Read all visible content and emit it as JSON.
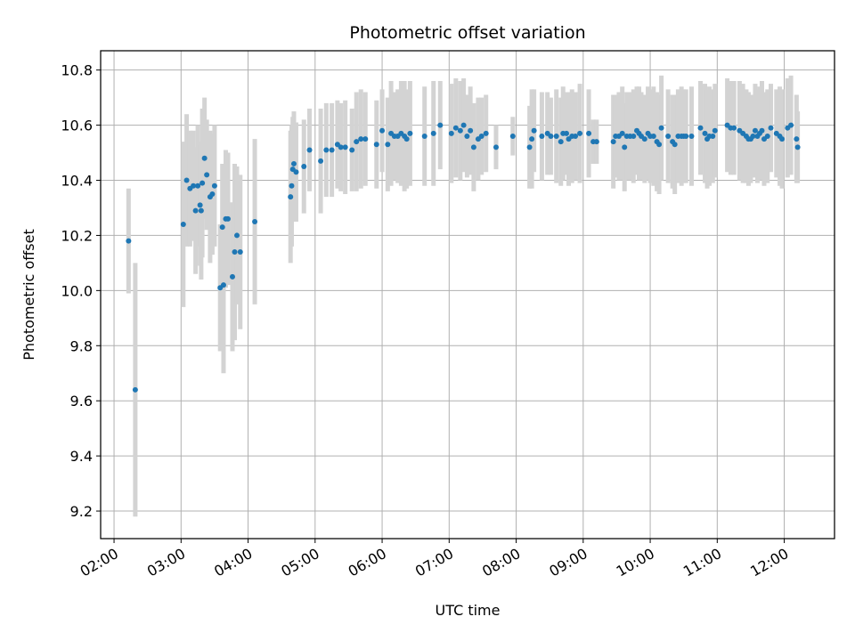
{
  "chart_data": {
    "type": "scatter",
    "title": "Photometric offset variation",
    "xlabel": "UTC time",
    "ylabel": "Photometric offset",
    "x_is_time": true,
    "xlim": [
      "01:48",
      "12:45"
    ],
    "ylim": [
      9.1,
      10.87
    ],
    "x_ticks": [
      "02:00",
      "03:00",
      "04:00",
      "05:00",
      "06:00",
      "07:00",
      "08:00",
      "09:00",
      "10:00",
      "11:00",
      "12:00"
    ],
    "y_ticks": [
      9.2,
      9.4,
      9.6,
      9.8,
      10.0,
      10.2,
      10.4,
      10.6,
      10.8
    ],
    "y_tick_labels": [
      "9.2",
      "9.4",
      "9.6",
      "9.8",
      "10.0",
      "10.2",
      "10.4",
      "10.6",
      "10.8"
    ],
    "grid": true,
    "colors": {
      "points": "#1f77b4",
      "errorbars": "#d3d3d3",
      "grid": "#b0b0b0",
      "axes": "#000000"
    },
    "series": [
      {
        "points": [
          [
            "02:13",
            10.18,
            0.19
          ],
          [
            "02:19",
            9.64,
            0.46
          ],
          [
            "03:02",
            10.24,
            0.3
          ],
          [
            "03:05",
            10.4,
            0.24
          ],
          [
            "03:08",
            10.37,
            0.21
          ],
          [
            "03:11",
            10.38,
            0.2
          ],
          [
            "03:13",
            10.29,
            0.23
          ],
          [
            "03:15",
            10.38,
            0.22
          ],
          [
            "03:17",
            10.31,
            0.22
          ],
          [
            "03:18",
            10.29,
            0.25
          ],
          [
            "03:19",
            10.39,
            0.27
          ],
          [
            "03:21",
            10.48,
            0.22
          ],
          [
            "03:23",
            10.42,
            0.2
          ],
          [
            "03:26",
            10.34,
            0.24
          ],
          [
            "03:28",
            10.35,
            0.22
          ],
          [
            "03:30",
            10.38,
            0.22
          ],
          [
            "03:35",
            10.01,
            0.23
          ],
          [
            "03:37",
            10.23,
            0.23
          ],
          [
            "03:38",
            10.02,
            0.32
          ],
          [
            "03:40",
            10.26,
            0.25
          ],
          [
            "03:42",
            10.26,
            0.24
          ],
          [
            "03:46",
            10.05,
            0.27
          ],
          [
            "03:48",
            10.14,
            0.32
          ],
          [
            "03:50",
            10.2,
            0.25
          ],
          [
            "03:53",
            10.14,
            0.28
          ],
          [
            "04:06",
            10.25,
            0.3
          ],
          [
            "04:38",
            10.34,
            0.24
          ],
          [
            "04:39",
            10.38,
            0.22
          ],
          [
            "04:40",
            10.44,
            0.19
          ],
          [
            "04:41",
            10.46,
            0.19
          ],
          [
            "04:43",
            10.43,
            0.18
          ],
          [
            "04:50",
            10.45,
            0.17
          ],
          [
            "04:55",
            10.51,
            0.15
          ],
          [
            "05:05",
            10.47,
            0.19
          ],
          [
            "05:10",
            10.51,
            0.17
          ],
          [
            "05:15",
            10.51,
            0.17
          ],
          [
            "05:20",
            10.53,
            0.16
          ],
          [
            "05:23",
            10.52,
            0.16
          ],
          [
            "05:27",
            10.52,
            0.17
          ],
          [
            "05:33",
            10.51,
            0.15
          ],
          [
            "05:37",
            10.54,
            0.18
          ],
          [
            "05:41",
            10.55,
            0.18
          ],
          [
            "05:45",
            10.55,
            0.17
          ],
          [
            "05:55",
            10.53,
            0.16
          ],
          [
            "06:00",
            10.58,
            0.15
          ],
          [
            "06:05",
            10.53,
            0.17
          ],
          [
            "06:08",
            10.57,
            0.19
          ],
          [
            "06:11",
            10.56,
            0.16
          ],
          [
            "06:14",
            10.56,
            0.17
          ],
          [
            "06:17",
            10.57,
            0.19
          ],
          [
            "06:20",
            10.56,
            0.2
          ],
          [
            "06:22",
            10.55,
            0.18
          ],
          [
            "06:25",
            10.57,
            0.19
          ],
          [
            "06:38",
            10.56,
            0.18
          ],
          [
            "06:46",
            10.57,
            0.19
          ],
          [
            "06:52",
            10.6,
            0.16
          ],
          [
            "07:02",
            10.57,
            0.18
          ],
          [
            "07:06",
            10.59,
            0.18
          ],
          [
            "07:10",
            10.58,
            0.18
          ],
          [
            "07:13",
            10.6,
            0.17
          ],
          [
            "07:16",
            10.56,
            0.15
          ],
          [
            "07:19",
            10.58,
            0.16
          ],
          [
            "07:22",
            10.52,
            0.16
          ],
          [
            "07:26",
            10.55,
            0.15
          ],
          [
            "07:29",
            10.56,
            0.14
          ],
          [
            "07:33",
            10.57,
            0.14
          ],
          [
            "07:42",
            10.52,
            0.08
          ],
          [
            "07:57",
            10.56,
            0.07
          ],
          [
            "08:12",
            10.52,
            0.15
          ],
          [
            "08:14",
            10.55,
            0.18
          ],
          [
            "08:16",
            10.58,
            0.15
          ],
          [
            "08:23",
            10.56,
            0.16
          ],
          [
            "08:28",
            10.57,
            0.15
          ],
          [
            "08:31",
            10.56,
            0.14
          ],
          [
            "08:36",
            10.56,
            0.17
          ],
          [
            "08:40",
            10.54,
            0.16
          ],
          [
            "08:42",
            10.57,
            0.17
          ],
          [
            "08:45",
            10.57,
            0.15
          ],
          [
            "08:47",
            10.55,
            0.17
          ],
          [
            "08:50",
            10.56,
            0.17
          ],
          [
            "08:53",
            10.56,
            0.16
          ],
          [
            "08:57",
            10.57,
            0.18
          ],
          [
            "09:05",
            10.57,
            0.16
          ],
          [
            "09:09",
            10.54,
            0.08
          ],
          [
            "09:12",
            10.54,
            0.08
          ],
          [
            "09:27",
            10.54,
            0.17
          ],
          [
            "09:29",
            10.56,
            0.15
          ],
          [
            "09:32",
            10.56,
            0.16
          ],
          [
            "09:35",
            10.57,
            0.17
          ],
          [
            "09:37",
            10.52,
            0.16
          ],
          [
            "09:39",
            10.56,
            0.16
          ],
          [
            "09:42",
            10.56,
            0.16
          ],
          [
            "09:45",
            10.56,
            0.17
          ],
          [
            "09:48",
            10.58,
            0.16
          ],
          [
            "09:50",
            10.57,
            0.17
          ],
          [
            "09:52",
            10.56,
            0.16
          ],
          [
            "09:55",
            10.55,
            0.16
          ],
          [
            "09:58",
            10.57,
            0.17
          ],
          [
            "10:00",
            10.56,
            0.17
          ],
          [
            "10:03",
            10.56,
            0.18
          ],
          [
            "10:06",
            10.54,
            0.18
          ],
          [
            "10:08",
            10.53,
            0.18
          ],
          [
            "10:10",
            10.59,
            0.19
          ],
          [
            "10:16",
            10.56,
            0.17
          ],
          [
            "10:20",
            10.54,
            0.17
          ],
          [
            "10:22",
            10.53,
            0.18
          ],
          [
            "10:25",
            10.56,
            0.17
          ],
          [
            "10:28",
            10.56,
            0.18
          ],
          [
            "10:30",
            10.56,
            0.17
          ],
          [
            "10:32",
            10.56,
            0.17
          ],
          [
            "10:37",
            10.56,
            0.18
          ],
          [
            "10:45",
            10.59,
            0.17
          ],
          [
            "10:49",
            10.57,
            0.18
          ],
          [
            "10:51",
            10.55,
            0.18
          ],
          [
            "10:53",
            10.56,
            0.18
          ],
          [
            "10:56",
            10.56,
            0.17
          ],
          [
            "10:58",
            10.58,
            0.17
          ],
          [
            "11:09",
            10.6,
            0.17
          ],
          [
            "11:12",
            10.59,
            0.17
          ],
          [
            "11:15",
            10.59,
            0.17
          ],
          [
            "11:20",
            10.58,
            0.18
          ],
          [
            "11:23",
            10.57,
            0.18
          ],
          [
            "11:26",
            10.56,
            0.17
          ],
          [
            "11:28",
            10.55,
            0.17
          ],
          [
            "11:30",
            10.55,
            0.16
          ],
          [
            "11:32",
            10.56,
            0.15
          ],
          [
            "11:34",
            10.58,
            0.17
          ],
          [
            "11:36",
            10.56,
            0.17
          ],
          [
            "11:38",
            10.57,
            0.17
          ],
          [
            "11:40",
            10.58,
            0.18
          ],
          [
            "11:42",
            10.55,
            0.17
          ],
          [
            "11:45",
            10.56,
            0.17
          ],
          [
            "11:48",
            10.59,
            0.16
          ],
          [
            "11:53",
            10.57,
            0.16
          ],
          [
            "11:56",
            10.56,
            0.18
          ],
          [
            "11:58",
            10.55,
            0.18
          ],
          [
            "12:03",
            10.59,
            0.18
          ],
          [
            "12:06",
            10.6,
            0.18
          ],
          [
            "12:11",
            10.55,
            0.16
          ],
          [
            "12:12",
            10.52,
            0.13
          ]
        ]
      }
    ]
  }
}
